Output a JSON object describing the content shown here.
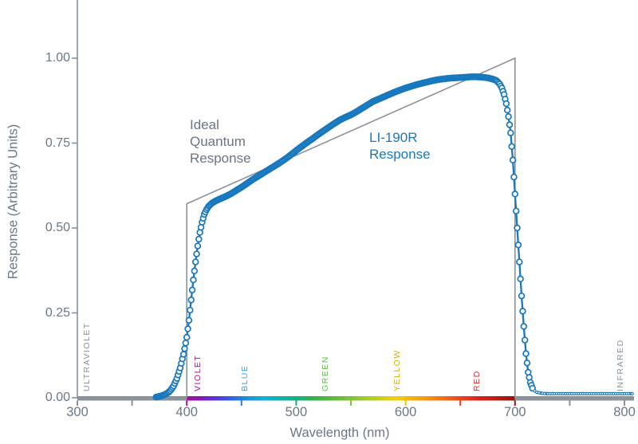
{
  "chart_data": {
    "type": "scatter",
    "xlabel": "Wavelength (nm)",
    "ylabel": "Response (Arbitrary Units)",
    "xlim": [
      300,
      800
    ],
    "ylim": [
      0,
      1.0
    ],
    "grid": false,
    "y_ticks": [
      {
        "value": 0.0,
        "label": "0.00"
      },
      {
        "value": 0.25,
        "label": "0.25"
      },
      {
        "value": 0.5,
        "label": "0.50"
      },
      {
        "value": 0.75,
        "label": "0.75"
      },
      {
        "value": 1.0,
        "label": "1.00"
      }
    ],
    "x_ticks": [
      {
        "nm": 300,
        "label": "300",
        "color": "#8a929c"
      },
      {
        "nm": 350,
        "label": "",
        "color": "#8a929c"
      },
      {
        "nm": 400,
        "label": "400",
        "color": "#a30d9c"
      },
      {
        "nm": 450,
        "label": "",
        "color": "#2380dc"
      },
      {
        "nm": 500,
        "label": "500",
        "color": "#15b175"
      },
      {
        "nm": 550,
        "label": "",
        "color": "#85c535"
      },
      {
        "nm": 600,
        "label": "600",
        "color": "#f0c409"
      },
      {
        "nm": 650,
        "label": "",
        "color": "#ec431c"
      },
      {
        "nm": 700,
        "label": "700",
        "color": "#8c1613"
      },
      {
        "nm": 750,
        "label": "",
        "color": "#8a929c"
      },
      {
        "nm": 800,
        "label": "800",
        "color": "#8a929c"
      }
    ],
    "series": [
      {
        "name": "Ideal Quantum Response",
        "type": "line",
        "color": "#8a929c",
        "points": [
          [
            400,
            0
          ],
          [
            400,
            0.5714
          ],
          [
            700,
            1.0
          ],
          [
            700,
            0
          ]
        ]
      },
      {
        "name": "LI-190R Response",
        "type": "scatter-line",
        "color": "#1878be",
        "marker": "open-circle",
        "keypoints": [
          [
            372,
            0.002
          ],
          [
            376,
            0.005
          ],
          [
            379,
            0.008
          ],
          [
            382,
            0.013
          ],
          [
            385,
            0.021
          ],
          [
            388,
            0.035
          ],
          [
            391,
            0.057
          ],
          [
            394,
            0.088
          ],
          [
            397,
            0.128
          ],
          [
            400,
            0.178
          ],
          [
            402,
            0.228
          ],
          [
            404,
            0.288
          ],
          [
            406,
            0.347
          ],
          [
            408,
            0.4
          ],
          [
            410,
            0.447
          ],
          [
            412,
            0.487
          ],
          [
            414,
            0.517
          ],
          [
            416,
            0.54
          ],
          [
            418,
            0.554
          ],
          [
            420,
            0.564
          ],
          [
            423,
            0.573
          ],
          [
            426,
            0.579
          ],
          [
            430,
            0.585
          ],
          [
            435,
            0.592
          ],
          [
            440,
            0.6
          ],
          [
            445,
            0.61
          ],
          [
            450,
            0.62
          ],
          [
            455,
            0.631
          ],
          [
            460,
            0.642
          ],
          [
            465,
            0.652
          ],
          [
            470,
            0.662
          ],
          [
            475,
            0.672
          ],
          [
            480,
            0.682
          ],
          [
            485,
            0.692
          ],
          [
            490,
            0.703
          ],
          [
            495,
            0.715
          ],
          [
            500,
            0.728
          ],
          [
            505,
            0.74
          ],
          [
            510,
            0.752
          ],
          [
            515,
            0.763
          ],
          [
            520,
            0.775
          ],
          [
            525,
            0.786
          ],
          [
            530,
            0.797
          ],
          [
            535,
            0.808
          ],
          [
            540,
            0.818
          ],
          [
            545,
            0.826
          ],
          [
            550,
            0.833
          ],
          [
            555,
            0.842
          ],
          [
            560,
            0.852
          ],
          [
            565,
            0.862
          ],
          [
            570,
            0.872
          ],
          [
            575,
            0.879
          ],
          [
            580,
            0.886
          ],
          [
            585,
            0.893
          ],
          [
            590,
            0.9
          ],
          [
            595,
            0.906
          ],
          [
            600,
            0.912
          ],
          [
            605,
            0.917
          ],
          [
            610,
            0.922
          ],
          [
            615,
            0.926
          ],
          [
            620,
            0.93
          ],
          [
            625,
            0.934
          ],
          [
            630,
            0.937
          ],
          [
            635,
            0.939
          ],
          [
            640,
            0.941
          ],
          [
            645,
            0.942
          ],
          [
            650,
            0.943
          ],
          [
            655,
            0.944
          ],
          [
            660,
            0.945
          ],
          [
            665,
            0.945
          ],
          [
            670,
            0.944
          ],
          [
            675,
            0.942
          ],
          [
            680,
            0.938
          ],
          [
            683,
            0.934
          ],
          [
            686,
            0.924
          ],
          [
            688,
            0.912
          ],
          [
            690,
            0.893
          ],
          [
            692,
            0.866
          ],
          [
            694,
            0.828
          ],
          [
            696,
            0.78
          ],
          [
            698,
            0.7
          ],
          [
            700,
            0.6
          ],
          [
            702,
            0.5
          ],
          [
            704,
            0.4
          ],
          [
            706,
            0.3
          ],
          [
            708,
            0.21
          ],
          [
            710,
            0.13
          ],
          [
            712,
            0.075
          ],
          [
            714,
            0.045
          ],
          [
            716,
            0.028
          ],
          [
            718,
            0.02
          ],
          [
            720,
            0.016
          ],
          [
            725,
            0.013
          ],
          [
            730,
            0.012
          ],
          [
            740,
            0.012
          ],
          [
            760,
            0.012
          ],
          [
            780,
            0.012
          ],
          [
            800,
            0.012
          ],
          [
            807,
            0.012
          ]
        ]
      }
    ],
    "annotations": [
      {
        "id": "ideal",
        "text": "Ideal\nQuantum\nResponse"
      },
      {
        "id": "li190r",
        "text": "LI-190R\nResponse"
      }
    ],
    "spectrum_band": {
      "gray_color": "#8a929c",
      "range_nm": [
        400,
        700
      ],
      "stops": [
        [
          400,
          "#a30d9c"
        ],
        [
          412,
          "#8a14b8"
        ],
        [
          425,
          "#6230d6"
        ],
        [
          440,
          "#2d62dd"
        ],
        [
          455,
          "#1b8fdc"
        ],
        [
          470,
          "#0fb0d6"
        ],
        [
          485,
          "#0cb4b0"
        ],
        [
          500,
          "#15b183"
        ],
        [
          515,
          "#2fb34a"
        ],
        [
          535,
          "#5fbb3b"
        ],
        [
          555,
          "#8cc733"
        ],
        [
          575,
          "#c4cf1e"
        ],
        [
          590,
          "#ecd30b"
        ],
        [
          605,
          "#f6b307"
        ],
        [
          620,
          "#f7940c"
        ],
        [
          635,
          "#f36d17"
        ],
        [
          650,
          "#ec431c"
        ],
        [
          665,
          "#e02419"
        ],
        [
          680,
          "#c31c15"
        ],
        [
          700,
          "#8c1613"
        ]
      ]
    },
    "band_labels": [
      {
        "text": "ULTRAVIOLET",
        "nm": 309,
        "color": "#8a929c"
      },
      {
        "text": "VIOLET",
        "nm": 410,
        "color": "#a6159b"
      },
      {
        "text": "BLUE",
        "nm": 453,
        "color": "#29abe2"
      },
      {
        "text": "GREEN",
        "nm": 527,
        "color": "#64bb46"
      },
      {
        "text": "YELLOW",
        "nm": 592,
        "color": "#d1b106"
      },
      {
        "text": "RED",
        "nm": 665,
        "color": "#d6352b"
      },
      {
        "text": "INFRARED",
        "nm": 796,
        "color": "#8a929c"
      }
    ],
    "colors": {
      "axis": "#7e8a99",
      "tick_text": "#6a7788",
      "ideal_line": "#8a929c",
      "data_blue": "#1878be"
    }
  }
}
